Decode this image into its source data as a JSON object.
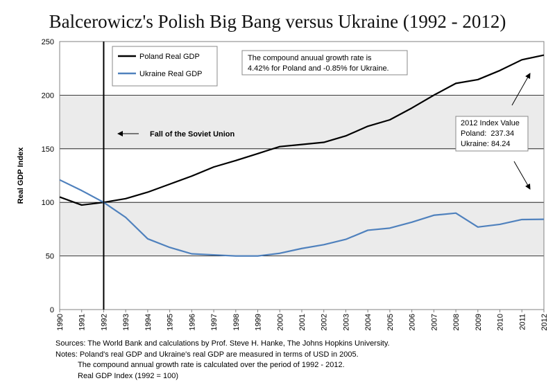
{
  "chart_data": {
    "type": "line",
    "title": "Balcerowicz's Polish Big Bang versus Ukraine (1992 - 2012)",
    "ylabel": "Real GDP Index",
    "xlabel": "",
    "ylim": [
      0,
      250
    ],
    "yticks": [
      0,
      50,
      100,
      150,
      200,
      250
    ],
    "x": [
      "1990",
      "1991",
      "1992",
      "1993",
      "1994",
      "1995",
      "1996",
      "1997",
      "1998",
      "1999",
      "2000",
      "2001",
      "2002",
      "2003",
      "2004",
      "2005",
      "2006",
      "2007",
      "2008",
      "2009",
      "2010",
      "2011",
      "2012"
    ],
    "series": [
      {
        "name": "Poland Real GDP",
        "color": "#000000",
        "values": [
          105,
          97.5,
          100,
          103.5,
          109.5,
          117,
          124.5,
          133,
          139,
          145.5,
          152,
          154,
          156,
          162,
          171,
          177,
          188,
          200,
          211,
          214.5,
          223,
          233,
          237.34
        ]
      },
      {
        "name": "Ukraine Real GDP",
        "color": "#4f81bd",
        "values": [
          121,
          111,
          100,
          86,
          66,
          58,
          52,
          51,
          50,
          50,
          52.5,
          57,
          60.5,
          65.5,
          74,
          76,
          81.5,
          88,
          90,
          77,
          79.5,
          84,
          84.24
        ]
      }
    ],
    "grid": true,
    "band_fill": [
      "#ffffff",
      "#ebebeb"
    ],
    "legend_position": "top-left",
    "vertical_marker_x": "1992",
    "annotations": {
      "soviet_fall": "Fall of the Soviet Union",
      "growth_rate_line1": "The compound anuual growth rate is",
      "growth_rate_line2": "4.42% for Poland and -0.85% for Ukraine.",
      "index_value_title": "2012 Index Value",
      "index_value_poland": "Poland:  237.34",
      "index_value_ukraine": "Ukraine: 84.24"
    }
  },
  "footer": {
    "sources": "Sources: The World Bank and calculations by Prof. Steve H. Hanke, The Johns Hopkins University.",
    "notes_line1": "Notes: Poland's real GDP and Ukraine's real GDP are measured in terms of USD in 2005.",
    "notes_line2": "The compound annual growth rate is calculated over the period of 1992 - 2012.",
    "notes_line3": "Real GDP Index (1992 = 100)"
  }
}
